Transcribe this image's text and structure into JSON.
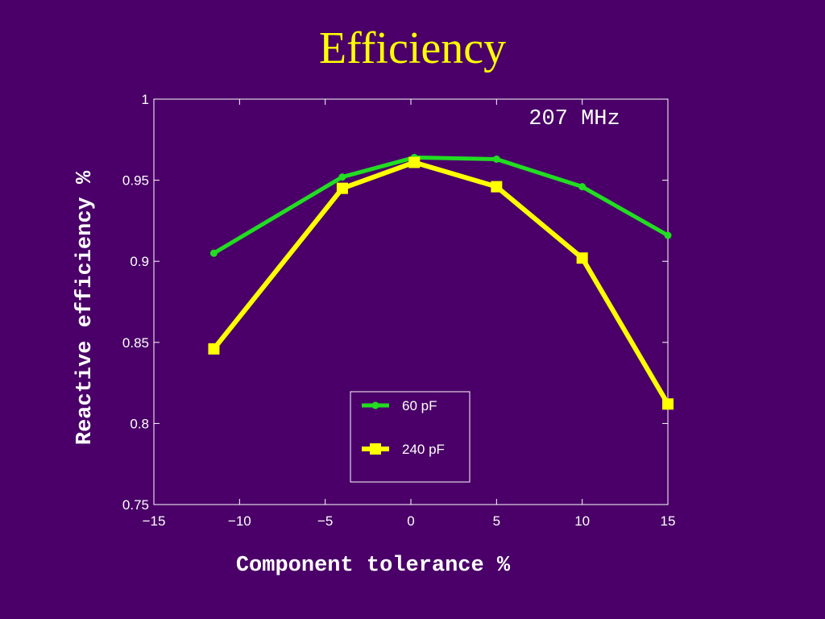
{
  "slide": {
    "title": "Efficiency"
  },
  "chart_data": {
    "type": "line",
    "title": "",
    "xlabel": "Component tolerance %",
    "ylabel": "Reactive efficiency %",
    "annotation": "207 MHz",
    "xlim": [
      -15,
      15
    ],
    "ylim": [
      0.75,
      1
    ],
    "xticks": [
      -15,
      -10,
      -5,
      0,
      5,
      10,
      15
    ],
    "xtick_labels": [
      "−15",
      "−10",
      "−5",
      "0",
      "5",
      "10",
      "15"
    ],
    "yticks": [
      0.75,
      0.8,
      0.85,
      0.9,
      0.95,
      1
    ],
    "ytick_labels": [
      "0.75",
      "0.8",
      "0.85",
      "0.9",
      "0.95",
      "1"
    ],
    "grid": false,
    "legend_position": "lower-center",
    "series": [
      {
        "name": "60 pF",
        "color": "#22dd22",
        "marker": "circle",
        "x": [
          -11.5,
          -4,
          0.2,
          5,
          10,
          15
        ],
        "y": [
          0.905,
          0.952,
          0.964,
          0.963,
          0.946,
          0.916
        ]
      },
      {
        "name": "240 pF",
        "color": "#ffff00",
        "marker": "square",
        "x": [
          -11.5,
          -4,
          0.2,
          5,
          10,
          15
        ],
        "y": [
          0.846,
          0.945,
          0.961,
          0.946,
          0.902,
          0.812
        ]
      }
    ]
  }
}
